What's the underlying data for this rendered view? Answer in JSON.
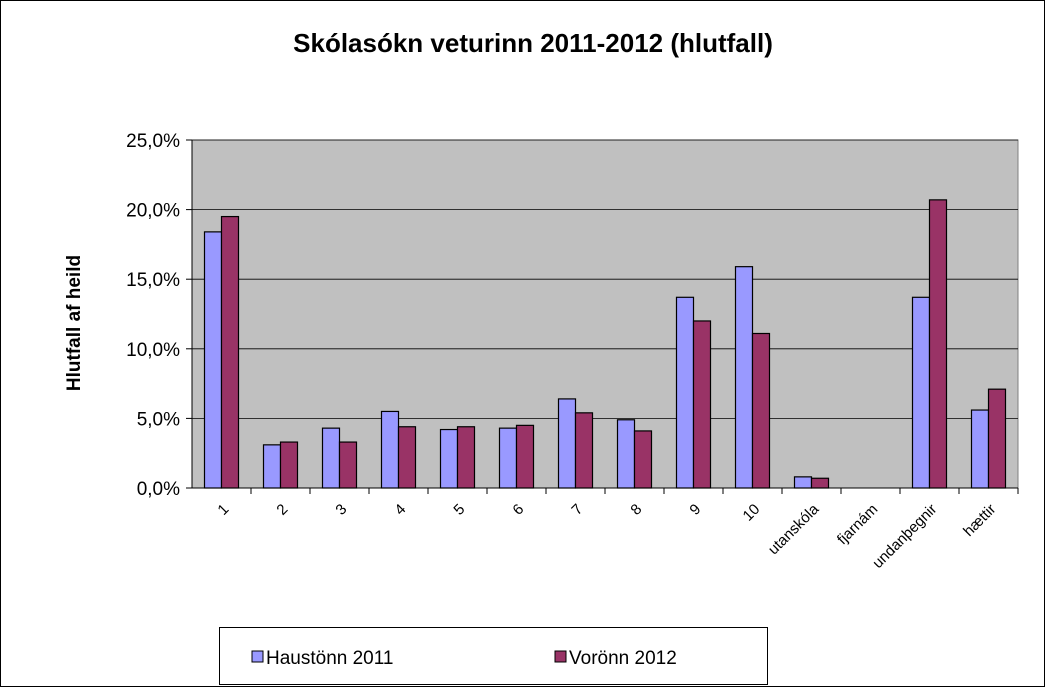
{
  "chart_data": {
    "type": "bar",
    "title": "Skólasókn veturinn 2011-2012 (hlutfall)",
    "y_label": "Hlutfall af heild",
    "categories": [
      "1",
      "2",
      "3",
      "4",
      "5",
      "6",
      "7",
      "8",
      "9",
      "10",
      "utanskóla",
      "fjarnám",
      "undanþegnir",
      "hættir"
    ],
    "series": [
      {
        "name": "Haustönn 2011",
        "color": "#9999ff",
        "values": [
          18.4,
          3.1,
          4.3,
          5.5,
          4.2,
          4.3,
          6.4,
          4.9,
          13.7,
          15.9,
          0.8,
          0,
          13.7,
          5.6
        ]
      },
      {
        "name": "Vorönn 2012",
        "color": "#993366",
        "values": [
          19.5,
          3.3,
          3.3,
          4.4,
          4.4,
          4.5,
          5.4,
          4.1,
          12.0,
          11.1,
          0.7,
          0,
          20.7,
          7.1
        ]
      }
    ],
    "ylim": [
      0,
      25
    ],
    "yticks": [
      {
        "value": 0,
        "label": "0,0%"
      },
      {
        "value": 5,
        "label": "5,0%"
      },
      {
        "value": 10,
        "label": "10,0%"
      },
      {
        "value": 15,
        "label": "15,0%"
      },
      {
        "value": 20,
        "label": "20,0%"
      },
      {
        "value": 25,
        "label": "25,0%"
      }
    ],
    "grid": true,
    "legend": "bottom"
  }
}
